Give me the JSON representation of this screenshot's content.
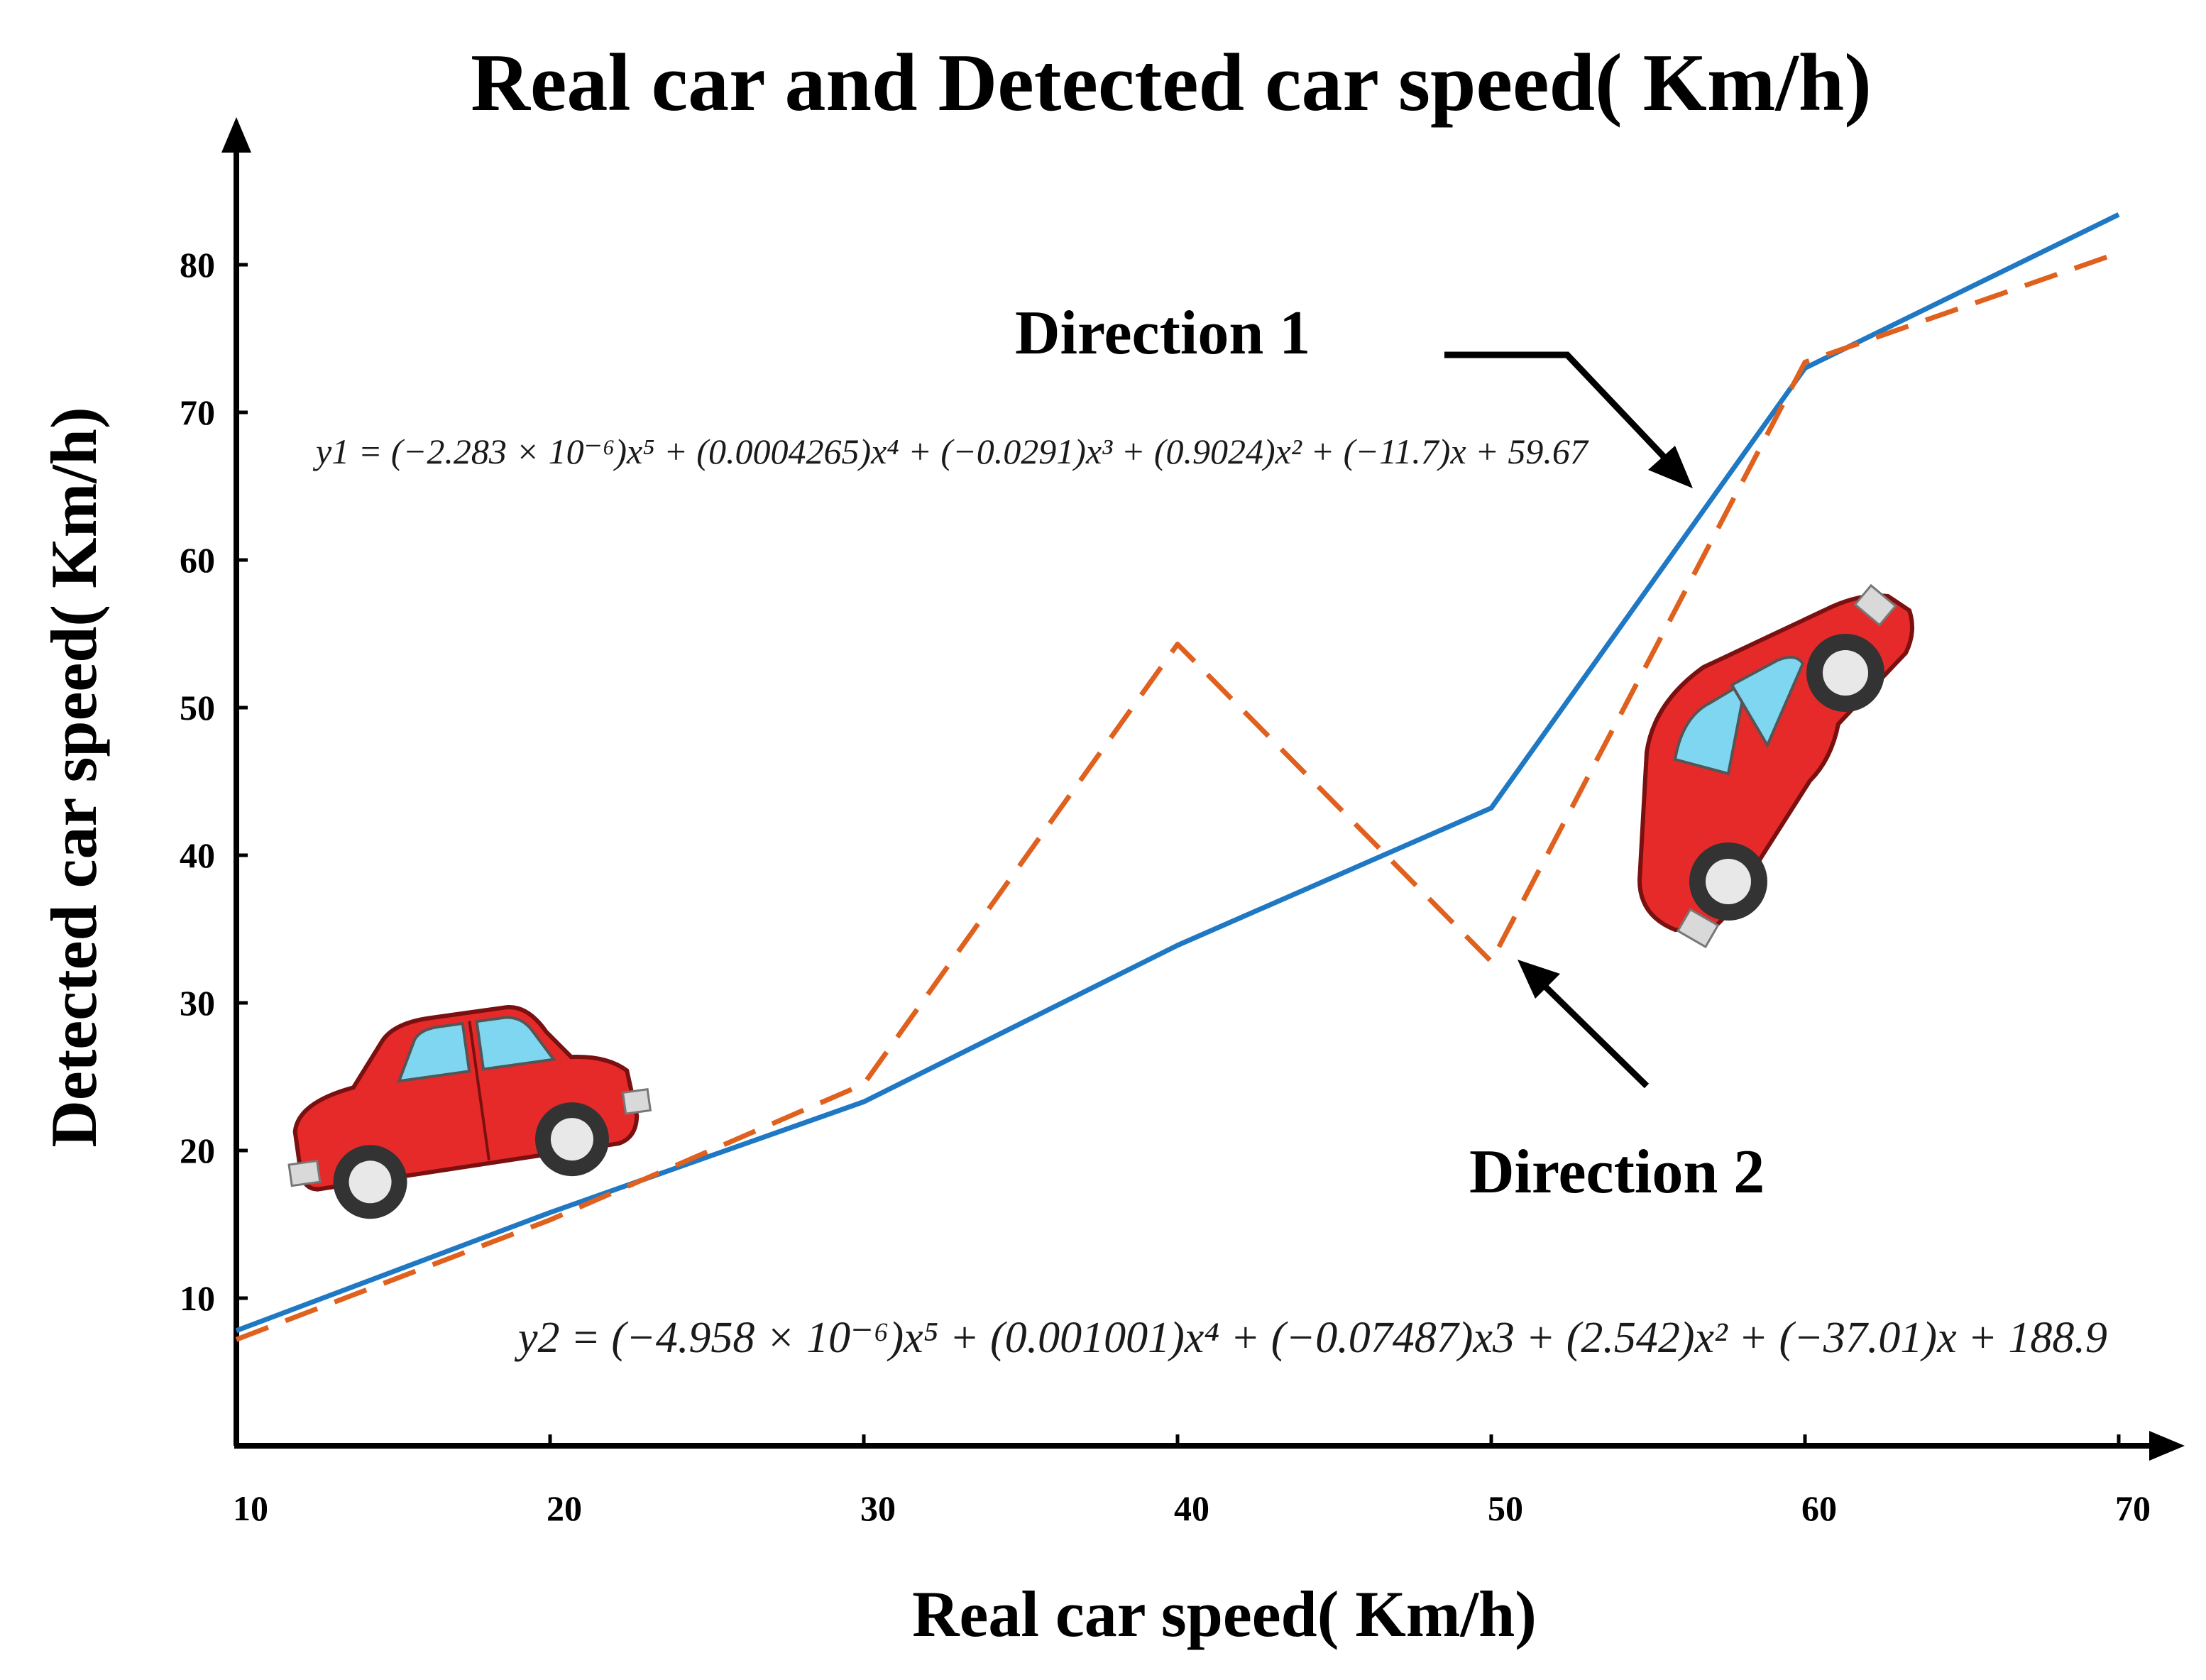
{
  "chart_data": {
    "type": "line",
    "title": "Real car and Detected car speed( Km/h)",
    "xlabel": "Real car speed( Km/h)",
    "ylabel": "Detected car speed( Km/h)",
    "xlim": [
      10,
      70
    ],
    "ylim": [
      0,
      88
    ],
    "x_ticks": [
      "10",
      "20",
      "30",
      "40",
      "50",
      "60",
      "70"
    ],
    "y_ticks": [
      "10",
      "20",
      "30",
      "40",
      "50",
      "60",
      "70",
      "80"
    ],
    "x": [
      10,
      20,
      30,
      40,
      50,
      60,
      70
    ],
    "grid": false,
    "series": [
      {
        "values": [
          7.8,
          15.8,
          23.3,
          33.9,
          43.2,
          73.0,
          83.4
        ],
        "color": "#1f78c4",
        "style": "solid"
      },
      {
        "values": [
          7.2,
          15.3,
          24.5,
          54.3,
          32.8,
          73.4,
          80.8
        ],
        "color": "#e0601e",
        "style": "dashed"
      }
    ],
    "annotations": {
      "direction1": "Direction 1",
      "direction2": "Direction 2",
      "eq1": "y1 = (−2.283 × 10⁻⁶)x⁵ + (0.0004265)x⁴ + (−0.0291)x³ + (0.9024)x² + (−11.7)x  +  59.67",
      "eq2": "y2 = (−4.958 × 10⁻⁶)x⁵ + (0.001001)x⁴ + (−0.07487)x3 +  (2.542)x² +  (−37.01)x  +  188.9"
    },
    "icons": [
      "red-car-icon",
      "red-car-tilted-icon"
    ]
  }
}
